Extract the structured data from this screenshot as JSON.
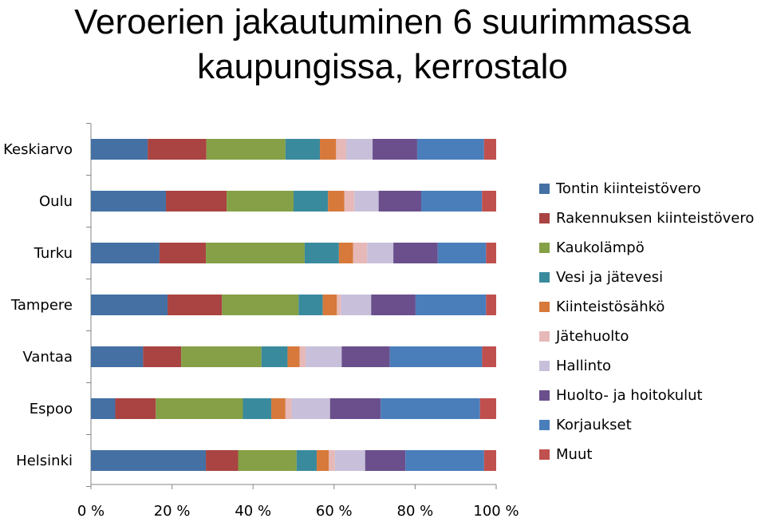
{
  "chart_data": {
    "type": "bar",
    "orientation": "horizontal",
    "stacked": "percent",
    "title": "Veroerien jakautuminen 6 suurimmassa kaupungissa, kerrostalo",
    "categories": [
      "Keskiarvo",
      "Oulu",
      "Turku",
      "Tampere",
      "Vantaa",
      "Espoo",
      "Helsinki"
    ],
    "xlim": [
      0,
      100
    ],
    "xticks": [
      "0 %",
      "20 %",
      "40 %",
      "60 %",
      "80 %",
      "100 %"
    ],
    "xtick_values": [
      0,
      20,
      40,
      60,
      80,
      100
    ],
    "legend_position": "right",
    "series": [
      {
        "name": "Tontin kiinteistövero",
        "color": "#4470A4",
        "values": [
          14,
          18.5,
          17,
          19,
          13,
          6,
          28.5
        ]
      },
      {
        "name": "Rakennuksen kiinteistövero",
        "color": "#A94442",
        "values": [
          14.5,
          15,
          11.5,
          13.5,
          9.5,
          10,
          8
        ]
      },
      {
        "name": "Kaukolämpö",
        "color": "#85A046",
        "values": [
          19.5,
          16.5,
          24.5,
          19,
          20,
          21.5,
          14.5
        ]
      },
      {
        "name": "Vesi ja jätevesi",
        "color": "#3A8A9E",
        "values": [
          8.5,
          8.5,
          8.5,
          6,
          6.5,
          7,
          5
        ]
      },
      {
        "name": "Kiinteistösähkö",
        "color": "#D7793A",
        "values": [
          4,
          4,
          3.5,
          3.5,
          3,
          3.5,
          3
        ]
      },
      {
        "name": "Jätehuolto",
        "color": "#E6B9B8",
        "values": [
          2.5,
          2.5,
          3.5,
          1,
          1.5,
          1.5,
          1.5
        ]
      },
      {
        "name": "Hallinto",
        "color": "#C8C0DA",
        "values": [
          6.5,
          6,
          6.5,
          7.5,
          9,
          9.5,
          7.5
        ]
      },
      {
        "name": "Huolto- ja hoitokulut",
        "color": "#6A4F8C",
        "values": [
          11,
          10.5,
          11,
          11,
          12,
          12.5,
          10
        ]
      },
      {
        "name": "Korjaukset",
        "color": "#4A7EBB",
        "values": [
          16.5,
          15,
          12,
          17.5,
          23,
          24.5,
          19.5
        ]
      },
      {
        "name": "Muut",
        "color": "#C0504D",
        "values": [
          3,
          3.5,
          2.5,
          2.5,
          3.5,
          4,
          3
        ]
      }
    ]
  }
}
